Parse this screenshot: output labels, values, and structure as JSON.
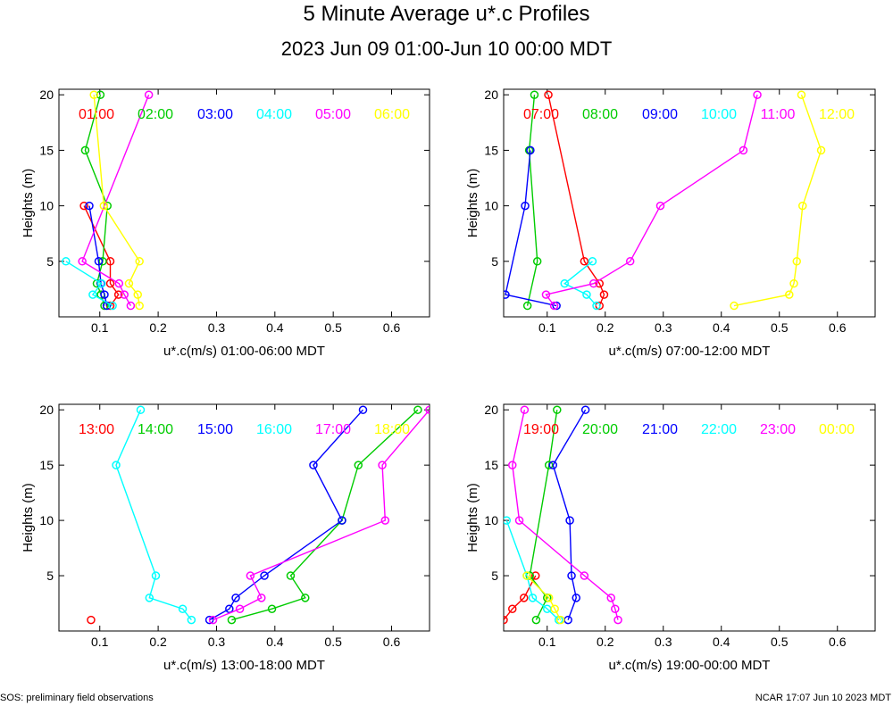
{
  "title": "5 Minute Average u*.c Profiles",
  "subtitle": "2023 Jun 09 01:00-Jun 10 00:00 MDT",
  "footer_left": "SOS: preliminary field observations",
  "footer_right": "NCAR 17:07 Jun 10 2023 MDT",
  "chart_data": [
    {
      "type": "line",
      "xlabel": "u*.c(m/s) 01:00-06:00 MDT",
      "ylabel": "Heights (m)",
      "xlim": [
        0.03,
        0.665
      ],
      "ylim": [
        0,
        20.5
      ],
      "xticks": [
        0.1,
        0.2,
        0.3,
        0.4,
        0.5,
        0.6
      ],
      "xtick_labels": [
        "0.1",
        "0.2",
        "0.3",
        "0.4",
        "0.5",
        "0.6"
      ],
      "yticks": [
        5,
        10,
        15,
        20
      ],
      "ytick_labels": [
        "5",
        "10",
        "15",
        "20"
      ],
      "series": [
        {
          "name": "01:00",
          "color": "#ff0000",
          "points": [
            [
              0.118,
              1
            ],
            [
              0.132,
              2
            ],
            [
              0.118,
              3
            ],
            [
              0.118,
              5
            ],
            [
              0.073,
              10
            ]
          ]
        },
        {
          "name": "02:00",
          "color": "#00cc00",
          "points": [
            [
              0.108,
              1
            ],
            [
              0.102,
              2
            ],
            [
              0.095,
              3
            ],
            [
              0.105,
              5
            ],
            [
              0.113,
              10
            ],
            [
              0.075,
              15
            ],
            [
              0.101,
              20
            ]
          ]
        },
        {
          "name": "03:00",
          "color": "#0000ff",
          "points": [
            [
              0.112,
              1
            ],
            [
              0.108,
              2
            ],
            [
              0.102,
              3
            ],
            [
              0.098,
              5
            ],
            [
              0.082,
              10
            ]
          ]
        },
        {
          "name": "04:00",
          "color": "#00ffff",
          "points": [
            [
              0.122,
              1
            ],
            [
              0.088,
              2
            ],
            [
              0.103,
              3
            ],
            [
              0.042,
              5
            ]
          ]
        },
        {
          "name": "05:00",
          "color": "#ff00ff",
          "points": [
            [
              0.153,
              1
            ],
            [
              0.142,
              2
            ],
            [
              0.133,
              3
            ],
            [
              0.07,
              5
            ],
            [
              0.184,
              20
            ]
          ]
        },
        {
          "name": "06:00",
          "color": "#ffff00",
          "points": [
            [
              0.168,
              1
            ],
            [
              0.165,
              2
            ],
            [
              0.15,
              3
            ],
            [
              0.168,
              5
            ],
            [
              0.107,
              10
            ],
            [
              0.09,
              20
            ]
          ]
        }
      ]
    },
    {
      "type": "line",
      "xlabel": "u*.c(m/s) 07:00-12:00 MDT",
      "ylabel": "Heights (m)",
      "xlim": [
        0.025,
        0.665
      ],
      "ylim": [
        0,
        20.5
      ],
      "xticks": [
        0.1,
        0.2,
        0.3,
        0.4,
        0.5,
        0.6
      ],
      "xtick_labels": [
        "0.1",
        "0.2",
        "0.3",
        "0.4",
        "0.5",
        "0.6"
      ],
      "yticks": [
        5,
        10,
        15,
        20
      ],
      "ytick_labels": [
        "5",
        "10",
        "15",
        "20"
      ],
      "series": [
        {
          "name": "07:00",
          "color": "#ff0000",
          "points": [
            [
              0.19,
              1
            ],
            [
              0.198,
              2
            ],
            [
              0.19,
              3
            ],
            [
              0.164,
              5
            ],
            [
              0.102,
              20
            ]
          ]
        },
        {
          "name": "08:00",
          "color": "#00cc00",
          "points": [
            [
              0.066,
              1
            ],
            [
              0.083,
              5
            ],
            [
              0.069,
              15
            ],
            [
              0.078,
              20
            ]
          ]
        },
        {
          "name": "09:00",
          "color": "#0000ff",
          "points": [
            [
              0.116,
              1
            ],
            [
              0.028,
              2
            ],
            [
              0.062,
              10
            ],
            [
              0.071,
              15
            ]
          ]
        },
        {
          "name": "10:00",
          "color": "#00ffff",
          "points": [
            [
              0.185,
              1
            ],
            [
              0.168,
              2
            ],
            [
              0.13,
              3
            ],
            [
              0.178,
              5
            ]
          ]
        },
        {
          "name": "11:00",
          "color": "#ff00ff",
          "points": [
            [
              0.112,
              1
            ],
            [
              0.098,
              2
            ],
            [
              0.18,
              3
            ],
            [
              0.243,
              5
            ],
            [
              0.295,
              10
            ],
            [
              0.438,
              15
            ],
            [
              0.462,
              20
            ]
          ]
        },
        {
          "name": "12:00",
          "color": "#ffff00",
          "points": [
            [
              0.422,
              1
            ],
            [
              0.517,
              2
            ],
            [
              0.525,
              3
            ],
            [
              0.53,
              5
            ],
            [
              0.54,
              10
            ],
            [
              0.572,
              15
            ],
            [
              0.538,
              20
            ]
          ]
        }
      ]
    },
    {
      "type": "line",
      "xlabel": "u*.c(m/s) 13:00-18:00 MDT",
      "ylabel": "Heights (m)",
      "xlim": [
        0.03,
        0.665
      ],
      "ylim": [
        0,
        20.5
      ],
      "xticks": [
        0.1,
        0.2,
        0.3,
        0.4,
        0.5,
        0.6
      ],
      "xtick_labels": [
        "0.1",
        "0.2",
        "0.3",
        "0.4",
        "0.5",
        "0.6"
      ],
      "yticks": [
        5,
        10,
        15,
        20
      ],
      "ytick_labels": [
        "5",
        "10",
        "15",
        "20"
      ],
      "series": [
        {
          "name": "13:00",
          "color": "#ff0000",
          "points": [
            [
              0.085,
              1
            ]
          ]
        },
        {
          "name": "14:00",
          "color": "#00cc00",
          "points": [
            [
              0.326,
              1
            ],
            [
              0.395,
              2
            ],
            [
              0.452,
              3
            ],
            [
              0.427,
              5
            ],
            [
              0.515,
              10
            ],
            [
              0.543,
              15
            ],
            [
              0.645,
              20
            ]
          ]
        },
        {
          "name": "15:00",
          "color": "#0000ff",
          "points": [
            [
              0.288,
              1
            ],
            [
              0.322,
              2
            ],
            [
              0.333,
              3
            ],
            [
              0.382,
              5
            ],
            [
              0.515,
              10
            ],
            [
              0.466,
              15
            ],
            [
              0.551,
              20
            ]
          ]
        },
        {
          "name": "16:00",
          "color": "#00ffff",
          "points": [
            [
              0.257,
              1
            ],
            [
              0.242,
              2
            ],
            [
              0.185,
              3
            ],
            [
              0.196,
              5
            ],
            [
              0.128,
              15
            ],
            [
              0.17,
              20
            ]
          ]
        },
        {
          "name": "17:00",
          "color": "#ff00ff",
          "points": [
            [
              0.294,
              1
            ],
            [
              0.34,
              2
            ],
            [
              0.377,
              3
            ],
            [
              0.358,
              5
            ],
            [
              0.589,
              10
            ],
            [
              0.584,
              15
            ],
            [
              0.665,
              20
            ]
          ]
        },
        {
          "name": "18:00",
          "color": "#ffff00",
          "points": []
        }
      ]
    },
    {
      "type": "line",
      "xlabel": "u*.c(m/s) 19:00-00:00 MDT",
      "ylabel": "Heights (m)",
      "xlim": [
        0.025,
        0.665
      ],
      "ylim": [
        0,
        20.5
      ],
      "xticks": [
        0.1,
        0.2,
        0.3,
        0.4,
        0.5,
        0.6
      ],
      "xtick_labels": [
        "0.1",
        "0.2",
        "0.3",
        "0.4",
        "0.5",
        "0.6"
      ],
      "yticks": [
        5,
        10,
        15,
        20
      ],
      "ytick_labels": [
        "5",
        "10",
        "15",
        "20"
      ],
      "series": [
        {
          "name": "19:00",
          "color": "#ff0000",
          "points": [
            [
              0.025,
              1
            ],
            [
              0.04,
              2
            ],
            [
              0.06,
              3
            ],
            [
              0.08,
              5
            ]
          ]
        },
        {
          "name": "20:00",
          "color": "#00cc00",
          "points": [
            [
              0.081,
              1
            ],
            [
              0.1,
              3
            ],
            [
              0.07,
              5
            ],
            [
              0.103,
              15
            ],
            [
              0.117,
              20
            ]
          ]
        },
        {
          "name": "21:00",
          "color": "#0000ff",
          "points": [
            [
              0.136,
              1
            ],
            [
              0.15,
              3
            ],
            [
              0.142,
              5
            ],
            [
              0.139,
              10
            ],
            [
              0.11,
              15
            ],
            [
              0.166,
              20
            ]
          ]
        },
        {
          "name": "22:00",
          "color": "#00ffff",
          "points": [
            [
              0.12,
              1
            ],
            [
              0.1,
              2
            ],
            [
              0.075,
              3
            ],
            [
              0.065,
              5
            ],
            [
              0.03,
              10
            ]
          ]
        },
        {
          "name": "23:00",
          "color": "#ff00ff",
          "points": [
            [
              0.222,
              1
            ],
            [
              0.217,
              2
            ],
            [
              0.21,
              3
            ],
            [
              0.164,
              5
            ],
            [
              0.052,
              10
            ],
            [
              0.04,
              15
            ],
            [
              0.061,
              20
            ]
          ]
        },
        {
          "name": "00:00",
          "color": "#ffff00",
          "points": [
            [
              0.123,
              1
            ],
            [
              0.113,
              2
            ],
            [
              0.103,
              3
            ],
            [
              0.065,
              5
            ]
          ]
        }
      ]
    }
  ]
}
